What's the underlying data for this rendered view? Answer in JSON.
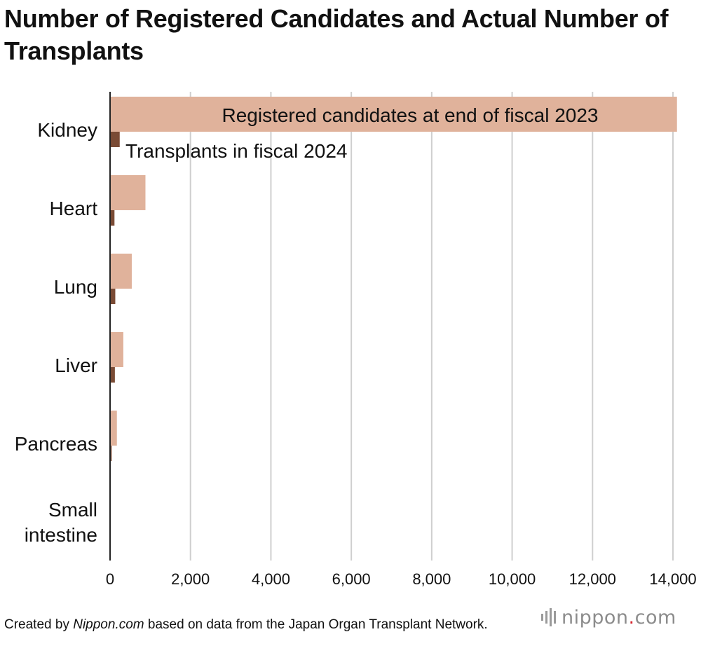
{
  "title": "Number of Registered Candidates and Actual Number of Transplants",
  "footer": {
    "prefix": "Created by ",
    "source_name": "Nippon.com",
    "suffix": " based on data from the Japan Organ Transplant Network."
  },
  "logo": {
    "word": "nippon",
    "dot": ".",
    "tld": "com"
  },
  "colors": {
    "registered": "#e0b29b",
    "transplants": "#7a4b35",
    "grid": "#cfcfcf",
    "axis": "#222222"
  },
  "chart_data": {
    "type": "bar",
    "orientation": "horizontal",
    "title": "Number of Registered Candidates and Actual Number of Transplants",
    "categories": [
      [
        "Kidney"
      ],
      [
        "Heart"
      ],
      [
        "Lung"
      ],
      [
        "Liver"
      ],
      [
        "Pancreas"
      ],
      [
        "Small",
        "intestine"
      ]
    ],
    "series": [
      {
        "name": "Registered candidates at end of fiscal 2023",
        "values": [
          14100,
          880,
          540,
          330,
          170,
          3
        ]
      },
      {
        "name": "Transplants in fiscal 2024",
        "values": [
          240,
          110,
          130,
          120,
          40,
          2
        ]
      }
    ],
    "xlim": [
      0,
      14000
    ],
    "xticks": [
      0,
      2000,
      4000,
      6000,
      8000,
      10000,
      12000,
      14000
    ],
    "xtick_labels": [
      "0",
      "2,000",
      "4,000",
      "6,000",
      "8,000",
      "10,000",
      "12,000",
      "14,000"
    ],
    "grid": true,
    "legend": "inline labels on Kidney bars"
  }
}
